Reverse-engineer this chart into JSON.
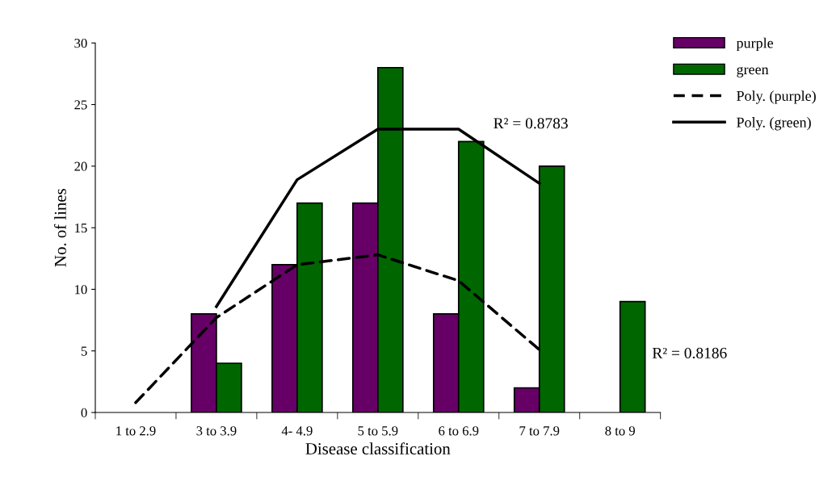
{
  "chart_data": {
    "type": "bar",
    "xlabel": "Disease classification",
    "ylabel": "No. of lines",
    "categories": [
      "1 to 2.9",
      "3 to 3.9",
      "4- 4.9",
      "5 to 5.9",
      "6 to 6.9",
      "7 to 7.9",
      "8 to 9"
    ],
    "series": [
      {
        "name": "purple",
        "color": "#660066",
        "values": [
          null,
          8,
          12,
          17,
          8,
          2,
          null
        ]
      },
      {
        "name": "green",
        "color": "#006600",
        "values": [
          null,
          4,
          17,
          28,
          22,
          20,
          9
        ]
      },
      {
        "name": "Poly. (purple)",
        "type": "line",
        "line_style": "dashed",
        "color": "#000000",
        "values": [
          0.8,
          7.7,
          12.0,
          12.8,
          10.7,
          5.1,
          null
        ]
      },
      {
        "name": "Poly. (green)",
        "type": "line",
        "line_style": "solid",
        "color": "#000000",
        "values": [
          null,
          8.6,
          18.9,
          23.0,
          23.0,
          18.6,
          null
        ]
      }
    ],
    "ylim": [
      0,
      30
    ],
    "yticks": [
      0,
      5,
      10,
      15,
      20,
      25,
      30
    ],
    "annotations": [
      "R² = 0.8783",
      "R² = 0.8186"
    ],
    "legend": "top right",
    "grid": false
  }
}
